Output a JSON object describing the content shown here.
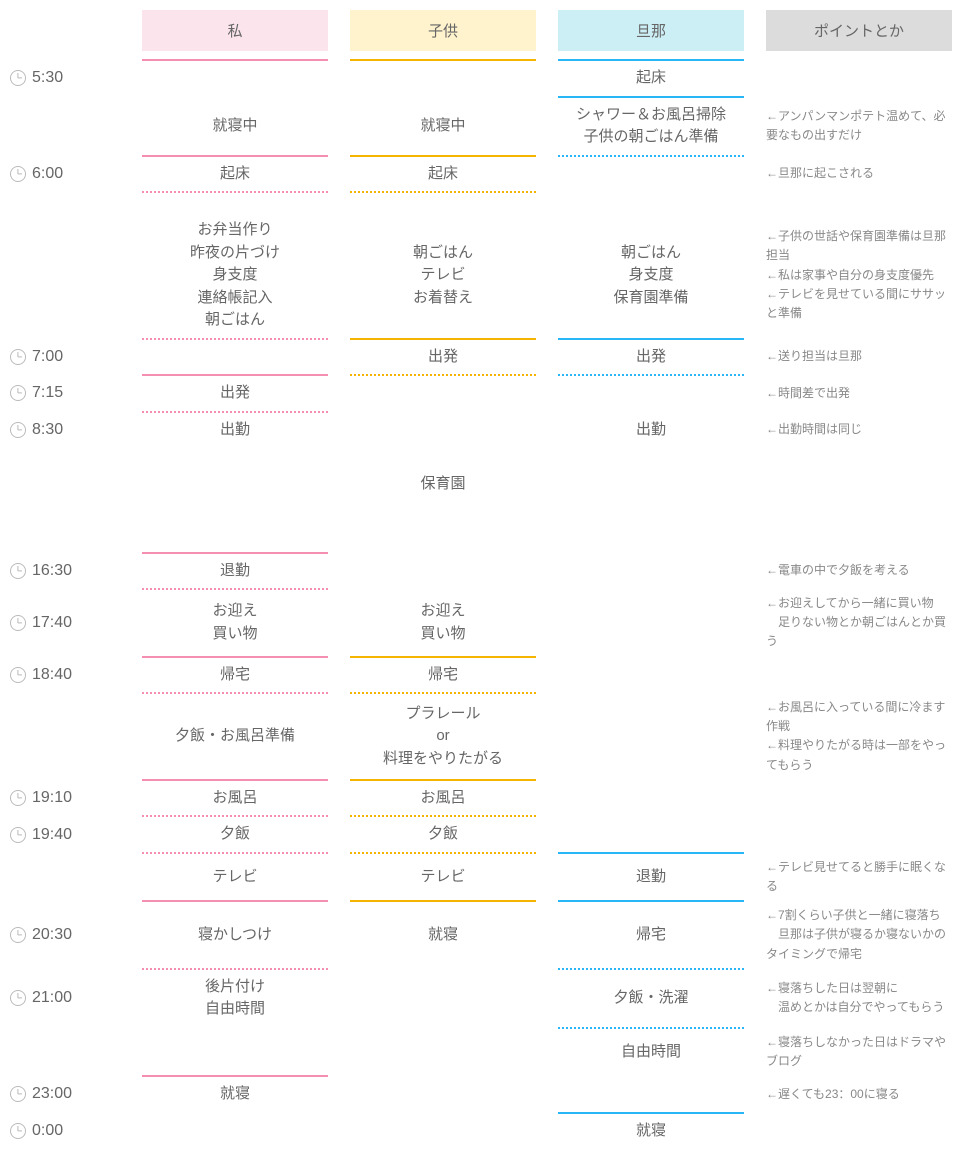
{
  "colors": {
    "me_header_bg": "#fce4ec",
    "child_header_bg": "#fff3cd",
    "husband_header_bg": "#cceef5",
    "notes_header_bg": "#dcdcdc",
    "me_divider": "#f48fb1",
    "child_divider": "#f5b400",
    "husband_divider": "#29b6f6",
    "husband_dotted": "#29b6f6",
    "me_dotted": "#f48fb1",
    "child_dotted": "#f5b400",
    "text": "#666666",
    "notes_text": "#888888"
  },
  "headers": {
    "me": "私",
    "child": "子供",
    "husband": "旦那",
    "notes": "ポイントとか"
  },
  "rows": [
    {
      "type": "header"
    },
    {
      "type": "divider_top"
    },
    {
      "type": "data",
      "time": "5:30",
      "me": null,
      "child": null,
      "husband": "起床",
      "notes": null
    },
    {
      "type": "sep",
      "husband": "solid"
    },
    {
      "type": "data",
      "time": null,
      "me": "就寝中",
      "child": "就寝中",
      "husband": [
        "シャワー＆お風呂掃除",
        "子供の朝ごはん準備"
      ],
      "notes": [
        "←アンパンマンポテト温めて、必要なもの出すだけ"
      ]
    },
    {
      "type": "sep",
      "me": "solid",
      "child": "solid",
      "husband": "dotted"
    },
    {
      "type": "data",
      "time": "6:00",
      "me": "起床",
      "child": "起床",
      "husband": null,
      "notes": [
        "←旦那に起こされる"
      ]
    },
    {
      "type": "sep",
      "me": "dotted",
      "child": "dotted"
    },
    {
      "type": "spacer"
    },
    {
      "type": "data",
      "time": null,
      "me": [
        "お弁当作り",
        "昨夜の片づけ",
        "身支度",
        "連絡帳記入",
        "朝ごはん"
      ],
      "child": [
        "朝ごはん",
        "テレビ",
        "お着替え"
      ],
      "husband": [
        "朝ごはん",
        "身支度",
        "保育園準備"
      ],
      "notes": [
        "←子供の世話や保育園準備は旦那担当",
        "←私は家事や自分の身支度優先",
        "←テレビを見せている間にササッと準備"
      ]
    },
    {
      "type": "sep",
      "me": "dotted",
      "child": "solid",
      "husband": "solid"
    },
    {
      "type": "data",
      "time": "7:00",
      "me": null,
      "child": "出発",
      "husband": "出発",
      "notes": [
        "←送り担当は旦那"
      ]
    },
    {
      "type": "sep",
      "me": "solid",
      "child": "dotted",
      "husband": "dotted"
    },
    {
      "type": "data",
      "time": "7:15",
      "me": "出発",
      "child": null,
      "husband": null,
      "notes": [
        "←時間差で出発"
      ]
    },
    {
      "type": "sep",
      "me": "dotted"
    },
    {
      "type": "data",
      "time": "8:30",
      "me": "出勤",
      "child": null,
      "husband": "出勤",
      "notes": [
        "←出勤時間は同じ"
      ]
    },
    {
      "type": "spacer"
    },
    {
      "type": "data",
      "time": null,
      "me": null,
      "child": "保育園",
      "husband": null,
      "notes": null
    },
    {
      "type": "spacer_big"
    },
    {
      "type": "sep",
      "me": "solid"
    },
    {
      "type": "data",
      "time": "16:30",
      "me": "退勤",
      "child": null,
      "husband": null,
      "notes": [
        "←電車の中で夕飯を考える"
      ]
    },
    {
      "type": "sep",
      "me": "dotted"
    },
    {
      "type": "data",
      "time": "17:40",
      "me": [
        "お迎え",
        "買い物"
      ],
      "child": [
        "お迎え",
        "買い物"
      ],
      "husband": null,
      "notes": [
        "←お迎えしてから一緒に買い物",
        "　足りない物とか朝ごはんとか買う"
      ]
    },
    {
      "type": "sep",
      "me": "solid",
      "child": "solid"
    },
    {
      "type": "data",
      "time": "18:40",
      "me": "帰宅",
      "child": "帰宅",
      "husband": null,
      "notes": null
    },
    {
      "type": "sep",
      "me": "dotted",
      "child": "dotted"
    },
    {
      "type": "data",
      "time": null,
      "me": "夕飯・お風呂準備",
      "child": [
        "プラレール",
        "or",
        "料理をやりたがる"
      ],
      "husband": null,
      "notes": [
        "←お風呂に入っている間に冷ます作戦",
        "←料理やりたがる時は一部をやってもらう"
      ]
    },
    {
      "type": "sep",
      "me": "solid",
      "child": "solid"
    },
    {
      "type": "data",
      "time": "19:10",
      "me": "お風呂",
      "child": "お風呂",
      "husband": null,
      "notes": null
    },
    {
      "type": "sep",
      "me": "dotted",
      "child": "dotted"
    },
    {
      "type": "data",
      "time": "19:40",
      "me": "夕飯",
      "child": "夕飯",
      "husband": null,
      "notes": null
    },
    {
      "type": "sep",
      "me": "dotted",
      "child": "dotted",
      "husband": "solid"
    },
    {
      "type": "data",
      "time": null,
      "me": "テレビ",
      "child": "テレビ",
      "husband": "退勤",
      "notes": [
        "←テレビ見せてると勝手に眠くなる"
      ]
    },
    {
      "type": "sep",
      "me": "solid",
      "child": "solid",
      "husband": "solid"
    },
    {
      "type": "data",
      "time": "20:30",
      "me": "寝かしつけ",
      "child": "就寝",
      "husband": "帰宅",
      "notes": [
        "←7割くらい子供と一緒に寝落ち",
        "　旦那は子供が寝るか寝ないかのタイミングで帰宅"
      ]
    },
    {
      "type": "sep",
      "me": "dotted",
      "husband": "dotted"
    },
    {
      "type": "data",
      "time": "21:00",
      "me": [
        "後片付け",
        "自由時間"
      ],
      "child": null,
      "husband": "夕飯・洗濯",
      "notes": [
        "←寝落ちした日は翌朝に",
        "　温めとかは自分でやってもらう"
      ]
    },
    {
      "type": "sep",
      "husband": "dotted"
    },
    {
      "type": "data",
      "time": null,
      "me": null,
      "child": null,
      "husband": "自由時間",
      "notes": [
        "←寝落ちしなかった日はドラマやブログ"
      ]
    },
    {
      "type": "sep",
      "me": "solid"
    },
    {
      "type": "data",
      "time": "23:00",
      "me": "就寝",
      "child": null,
      "husband": null,
      "notes": [
        "←遅くても23：00に寝る"
      ]
    },
    {
      "type": "sep",
      "husband": "solid"
    },
    {
      "type": "data",
      "time": "0:00",
      "me": null,
      "child": null,
      "husband": "就寝",
      "notes": null
    }
  ]
}
